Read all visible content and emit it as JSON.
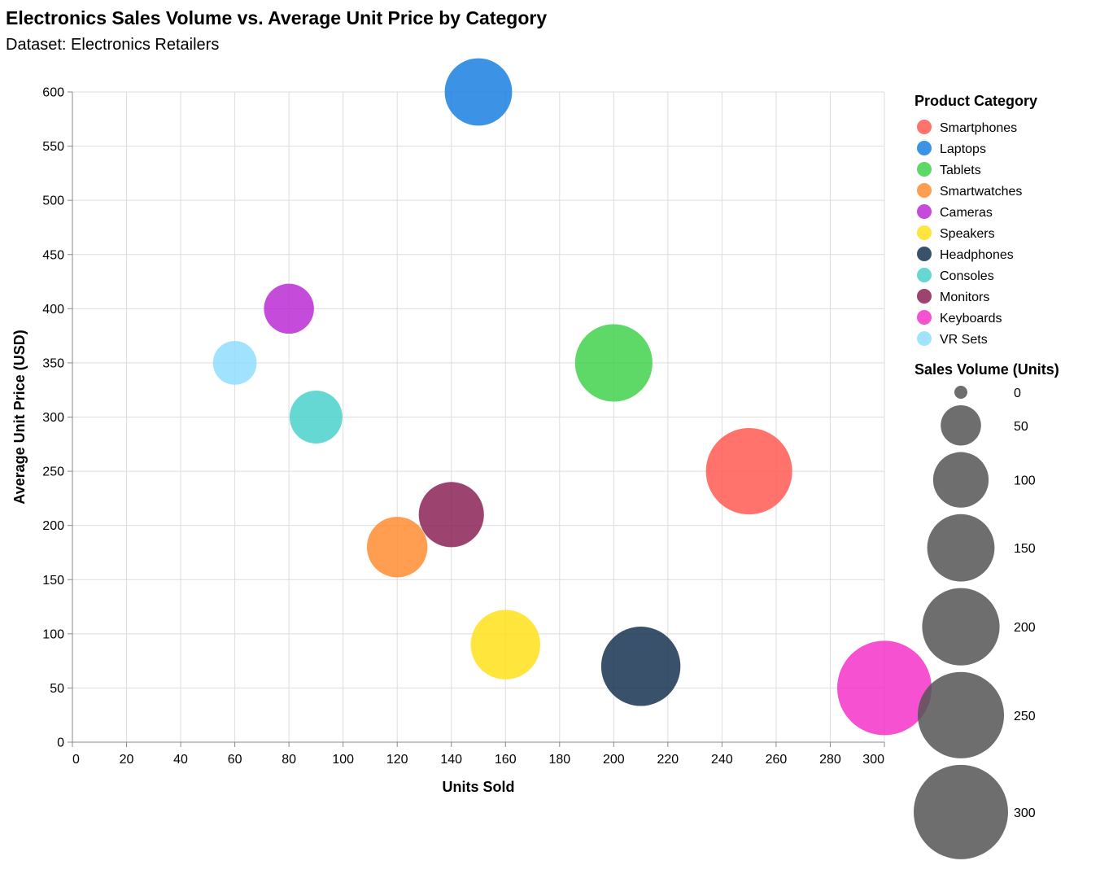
{
  "chart_data": {
    "type": "scatter",
    "title": "Electronics Sales Volume vs. Average Unit Price by Category",
    "subtitle": "Dataset: Electronics Retailers",
    "xlabel": "Units Sold",
    "ylabel": "Average Unit Price (USD)",
    "xlim": [
      0,
      300
    ],
    "ylim": [
      0,
      600
    ],
    "x_ticks": [
      0,
      20,
      40,
      60,
      80,
      100,
      120,
      140,
      160,
      180,
      200,
      220,
      240,
      260,
      280,
      300
    ],
    "y_ticks": [
      0,
      50,
      100,
      150,
      200,
      250,
      300,
      350,
      400,
      450,
      500,
      550,
      600
    ],
    "grid": true,
    "color_legend_title": "Product Category",
    "size_legend_title": "Sales Volume (Units)",
    "size_legend_values": [
      0,
      50,
      100,
      150,
      200,
      250,
      300
    ],
    "size_legend_color": "#555555",
    "legend_position": "right",
    "points": [
      {
        "category": "Smartphones",
        "x": 250,
        "y": 250,
        "size": 250,
        "color": "#ff5a52"
      },
      {
        "category": "Laptops",
        "x": 150,
        "y": 600,
        "size": 150,
        "color": "#1a7fe0"
      },
      {
        "category": "Tablets",
        "x": 200,
        "y": 350,
        "size": 200,
        "color": "#42d24d"
      },
      {
        "category": "Smartwatches",
        "x": 120,
        "y": 180,
        "size": 120,
        "color": "#ff8c32"
      },
      {
        "category": "Cameras",
        "x": 80,
        "y": 400,
        "size": 80,
        "color": "#bb2bd4"
      },
      {
        "category": "Speakers",
        "x": 160,
        "y": 90,
        "size": 160,
        "color": "#ffe01a"
      },
      {
        "category": "Headphones",
        "x": 210,
        "y": 70,
        "size": 210,
        "color": "#163350"
      },
      {
        "category": "Consoles",
        "x": 90,
        "y": 300,
        "size": 90,
        "color": "#4bd1cd"
      },
      {
        "category": "Monitors",
        "x": 140,
        "y": 210,
        "size": 140,
        "color": "#8c2257"
      },
      {
        "category": "Keyboards",
        "x": 300,
        "y": 50,
        "size": 300,
        "color": "#f432c8"
      },
      {
        "category": "VR Sets",
        "x": 60,
        "y": 350,
        "size": 60,
        "color": "#91ddff"
      }
    ]
  }
}
